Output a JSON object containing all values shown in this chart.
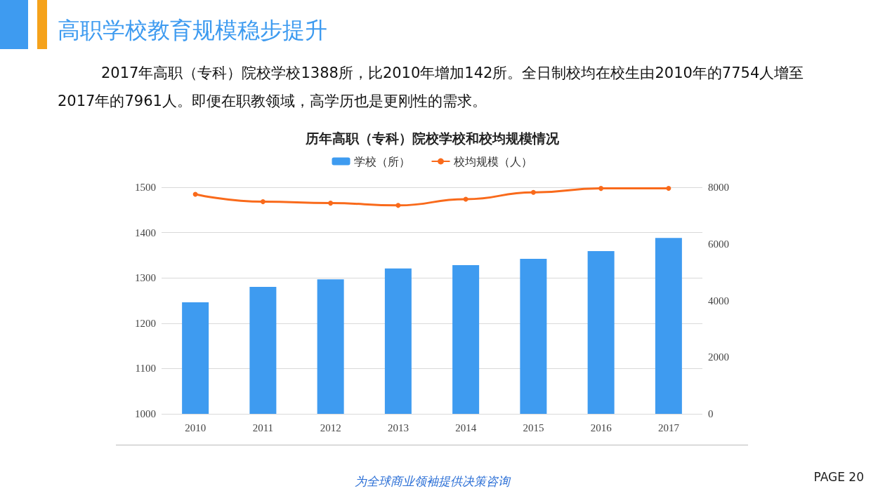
{
  "chart_data": {
    "type": "bar",
    "title": "高职学校教育规模稳步提升",
    "subtitle": "2017年高职（专科）院校学校1388所，比2010年增加142所。全日制校均在校生由2010年的7754人增至2017年的7961人。即便在职教领域，高学历也是更刚性的需求。",
    "annotations": [
      "历年高职（专科）院校学校和校均规模情况",
      "为全球商业领袖提供决策咨询",
      "PAGE  20"
    ],
    "categories": [
      "2010",
      "2011",
      "2012",
      "2013",
      "2014",
      "2015",
      "2016",
      "2017"
    ],
    "series": [
      {
        "name": "学校（所）",
        "color": "#3e9bf0",
        "values": [
          1246,
          1280,
          1297,
          1321,
          1328,
          1342,
          1359,
          1388
        ]
      },
      {
        "name": "校均规模（人）",
        "type": "line",
        "axis": "y2",
        "color": "#f96a1b",
        "values": [
          7754,
          7490,
          7440,
          7360,
          7580,
          7820,
          7960,
          7961
        ]
      }
    ],
    "ylim": [
      1000,
      1500
    ],
    "yticks": [
      1000,
      1100,
      1200,
      1300,
      1400,
      1500
    ],
    "y2lim": [
      0,
      8000
    ],
    "y2ticks": [
      0,
      2000,
      4000,
      6000,
      8000
    ],
    "grid": "y",
    "legend": "top",
    "marker": "circle",
    "line_style": "solid"
  }
}
